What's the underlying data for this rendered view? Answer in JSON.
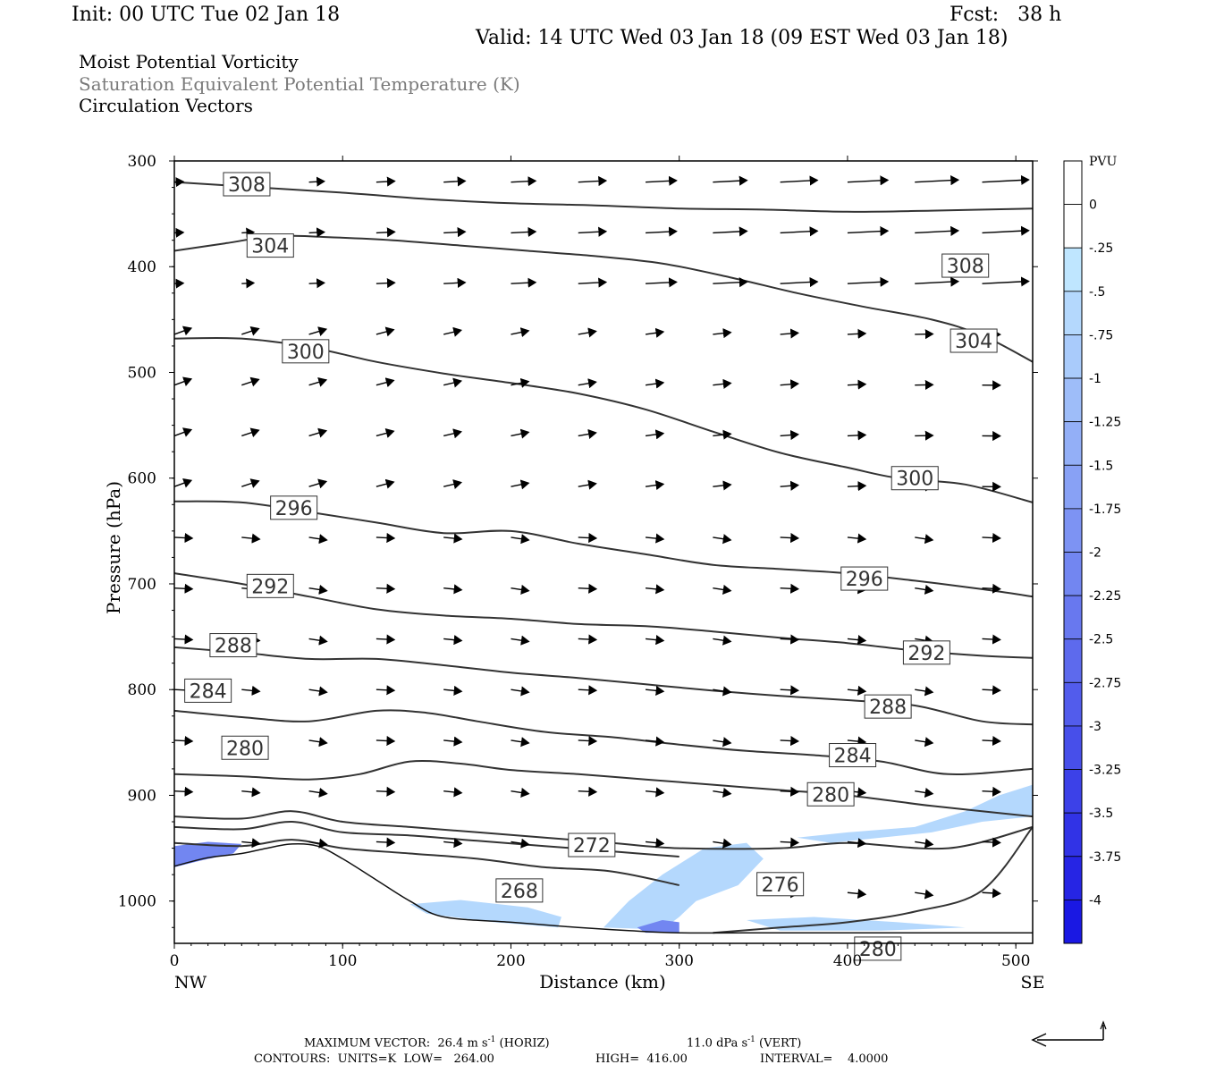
{
  "header": {
    "init": "Init: 00 UTC Tue 02 Jan 18",
    "fcst": "Fcst:   38 h",
    "valid": "Valid: 14 UTC Wed 03 Jan 18 (09 EST Wed 03 Jan 18)"
  },
  "fields": [
    "Moist Potential Vorticity",
    "Saturation Equivalent Potential Temperature (K)",
    "Circulation Vectors"
  ],
  "colors": {
    "contour": "#333333",
    "axis": "#000000",
    "legend_label": "#7a7a7a"
  },
  "chart_data": {
    "type": "contour",
    "xlabel": "Distance (km)",
    "ylabel": "Pressure (hPa)",
    "x_ticks": [
      "0",
      "100",
      "200",
      "300",
      "400",
      "500"
    ],
    "y_ticks": [
      "300",
      "400",
      "500",
      "600",
      "700",
      "800",
      "900",
      "1000"
    ],
    "xlim": [
      0,
      510
    ],
    "ylim": [
      300,
      1040
    ],
    "y_inverted": true,
    "left_end_label": "NW",
    "right_end_label": "SE",
    "colorbar": {
      "title": "PVU",
      "labels": [
        "0",
        "-.25",
        "-.5",
        "-.75",
        "-1",
        "-1.25",
        "-1.5",
        "-1.75",
        "-2",
        "-2.25",
        "-2.5",
        "-2.75",
        "-3",
        "-3.25",
        "-3.5",
        "-3.75",
        "-4"
      ],
      "colors": [
        "#ffffff",
        "#ffffff",
        "#bfe6ff",
        "#b4d8fd",
        "#a9cbfb",
        "#9ebdf9",
        "#93aff7",
        "#88a1f5",
        "#7d93f3",
        "#7286f1",
        "#6878ef",
        "#5d6aed",
        "#525cec",
        "#474fea",
        "#3c41e8",
        "#3133e6",
        "#2625e4",
        "#1a18e3"
      ]
    },
    "contours": [
      {
        "level": "308",
        "points": [
          [
            0,
            320
          ],
          [
            50,
            325
          ],
          [
            100,
            330
          ],
          [
            150,
            336
          ],
          [
            200,
            340
          ],
          [
            250,
            342
          ],
          [
            300,
            345
          ],
          [
            350,
            346
          ],
          [
            400,
            348
          ],
          [
            450,
            347
          ],
          [
            510,
            345
          ]
        ],
        "labels": [
          [
            43,
            322
          ],
          [
            470,
            399
          ]
        ]
      },
      {
        "level": "304",
        "points": [
          [
            0,
            385
          ],
          [
            30,
            378
          ],
          [
            60,
            371
          ],
          [
            90,
            372
          ],
          [
            130,
            375
          ],
          [
            170,
            380
          ],
          [
            210,
            385
          ],
          [
            250,
            390
          ],
          [
            290,
            397
          ],
          [
            330,
            410
          ],
          [
            370,
            425
          ],
          [
            410,
            438
          ],
          [
            450,
            450
          ],
          [
            480,
            465
          ],
          [
            510,
            490
          ]
        ],
        "labels": [
          [
            57,
            380
          ],
          [
            475,
            470
          ]
        ]
      },
      {
        "level": "300",
        "points": [
          [
            0,
            468
          ],
          [
            40,
            468
          ],
          [
            80,
            476
          ],
          [
            120,
            490
          ],
          [
            160,
            501
          ],
          [
            200,
            510
          ],
          [
            240,
            520
          ],
          [
            280,
            535
          ],
          [
            320,
            556
          ],
          [
            360,
            576
          ],
          [
            400,
            590
          ],
          [
            430,
            600
          ],
          [
            470,
            606
          ],
          [
            510,
            623
          ]
        ],
        "labels": [
          [
            78,
            480
          ],
          [
            440,
            600
          ]
        ]
      },
      {
        "level": "296",
        "points": [
          [
            0,
            622
          ],
          [
            40,
            623
          ],
          [
            80,
            632
          ],
          [
            120,
            642
          ],
          [
            160,
            652
          ],
          [
            200,
            650
          ],
          [
            240,
            662
          ],
          [
            280,
            672
          ],
          [
            320,
            682
          ],
          [
            360,
            686
          ],
          [
            400,
            690
          ],
          [
            440,
            697
          ],
          [
            480,
            705
          ],
          [
            510,
            712
          ]
        ],
        "labels": [
          [
            71,
            628
          ],
          [
            410,
            695
          ]
        ]
      },
      {
        "level": "292",
        "points": [
          [
            0,
            690
          ],
          [
            40,
            700
          ],
          [
            80,
            712
          ],
          [
            120,
            724
          ],
          [
            160,
            730
          ],
          [
            200,
            733
          ],
          [
            240,
            738
          ],
          [
            280,
            740
          ],
          [
            320,
            745
          ],
          [
            360,
            751
          ],
          [
            400,
            756
          ],
          [
            440,
            763
          ],
          [
            480,
            768
          ],
          [
            510,
            770
          ]
        ],
        "labels": [
          [
            57,
            702
          ],
          [
            447,
            765
          ]
        ]
      },
      {
        "level": "288",
        "points": [
          [
            0,
            760
          ],
          [
            40,
            765
          ],
          [
            80,
            771
          ],
          [
            120,
            771
          ],
          [
            160,
            777
          ],
          [
            200,
            784
          ],
          [
            240,
            789
          ],
          [
            280,
            795
          ],
          [
            320,
            801
          ],
          [
            360,
            806
          ],
          [
            400,
            810
          ],
          [
            440,
            815
          ],
          [
            480,
            830
          ],
          [
            510,
            833
          ]
        ],
        "labels": [
          [
            35,
            758
          ],
          [
            424,
            816
          ]
        ]
      },
      {
        "level": "284",
        "points": [
          [
            0,
            820
          ],
          [
            40,
            826
          ],
          [
            80,
            830
          ],
          [
            120,
            820
          ],
          [
            150,
            822
          ],
          [
            180,
            830
          ],
          [
            220,
            840
          ],
          [
            260,
            845
          ],
          [
            300,
            852
          ],
          [
            340,
            858
          ],
          [
            380,
            862
          ],
          [
            420,
            868
          ],
          [
            460,
            880
          ],
          [
            510,
            875
          ]
        ],
        "labels": [
          [
            20,
            801
          ],
          [
            403,
            862
          ]
        ]
      },
      {
        "level": "280",
        "points": [
          [
            0,
            880
          ],
          [
            40,
            882
          ],
          [
            80,
            885
          ],
          [
            110,
            880
          ],
          [
            140,
            868
          ],
          [
            170,
            870
          ],
          [
            200,
            876
          ],
          [
            240,
            880
          ],
          [
            280,
            885
          ],
          [
            320,
            890
          ],
          [
            360,
            895
          ],
          [
            400,
            900
          ],
          [
            450,
            910
          ],
          [
            510,
            920
          ]
        ],
        "labels": [
          [
            42,
            855
          ],
          [
            390,
            899
          ]
        ]
      },
      {
        "level": "276",
        "points": [
          [
            0,
            920
          ],
          [
            40,
            922
          ],
          [
            70,
            915
          ],
          [
            100,
            925
          ],
          [
            140,
            930
          ],
          [
            180,
            935
          ],
          [
            220,
            940
          ],
          [
            260,
            945
          ],
          [
            300,
            950
          ],
          [
            360,
            950
          ],
          [
            400,
            945
          ],
          [
            460,
            950
          ],
          [
            510,
            930
          ]
        ],
        "labels": [
          [
            360,
            984
          ]
        ]
      },
      {
        "level": "272",
        "points": [
          [
            0,
            930
          ],
          [
            40,
            932
          ],
          [
            70,
            925
          ],
          [
            100,
            935
          ],
          [
            140,
            938
          ],
          [
            180,
            943
          ],
          [
            220,
            948
          ],
          [
            260,
            953
          ],
          [
            300,
            958
          ]
        ],
        "labels": [
          [
            248,
            947
          ]
        ]
      },
      {
        "level": "268",
        "points": [
          [
            0,
            945
          ],
          [
            40,
            948
          ],
          [
            70,
            942
          ],
          [
            100,
            950
          ],
          [
            140,
            955
          ],
          [
            180,
            960
          ],
          [
            220,
            968
          ],
          [
            260,
            972
          ],
          [
            300,
            985
          ]
        ],
        "labels": [
          [
            205,
            990
          ]
        ]
      },
      {
        "level": "280",
        "points": [
          [
            320,
            1030
          ],
          [
            360,
            1025
          ],
          [
            400,
            1020
          ],
          [
            440,
            1010
          ],
          [
            480,
            990
          ],
          [
            510,
            930
          ]
        ],
        "labels": [
          [
            418,
            1045
          ]
        ]
      }
    ],
    "terrain": [
      [
        0,
        967
      ],
      [
        20,
        959
      ],
      [
        40,
        955
      ],
      [
        55,
        950
      ],
      [
        70,
        946
      ],
      [
        85,
        948
      ],
      [
        100,
        960
      ],
      [
        120,
        980
      ],
      [
        140,
        1000
      ],
      [
        160,
        1015
      ],
      [
        200,
        1020
      ],
      [
        240,
        1025
      ],
      [
        270,
        1028
      ],
      [
        300,
        1030
      ],
      [
        360,
        1030
      ],
      [
        420,
        1030
      ],
      [
        480,
        1030
      ],
      [
        510,
        1030
      ]
    ],
    "vector_scale": {
      "label": "MAXIMUM VECTOR:  26.4 m s",
      "horiz_unit": "-1",
      "horiz_suffix": "(HORIZ)",
      "vert_value": "11.0 dPa s",
      "vert_unit": "-1",
      "vert_suffix": "(VERT)"
    },
    "contour_info": {
      "units": "CONTOURS:  UNITS=K  LOW=   264.00",
      "high": "HIGH=  416.00",
      "interval": "INTERVAL=    4.0000"
    }
  }
}
